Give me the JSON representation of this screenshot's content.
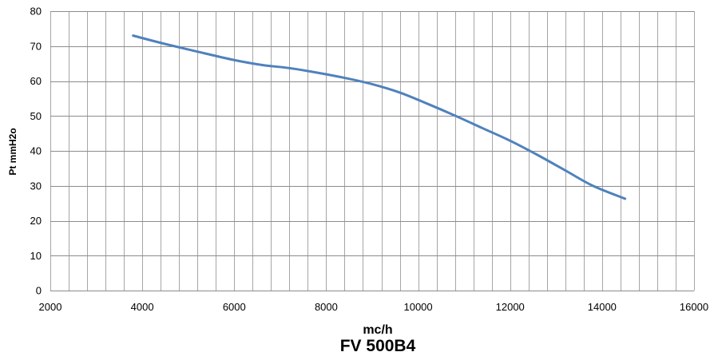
{
  "chart_data": {
    "type": "line",
    "title": "FV 500B4",
    "xlabel": "mc/h",
    "ylabel": "Pt mmH2o",
    "xlim": [
      2000,
      16000
    ],
    "ylim": [
      0,
      80
    ],
    "x_major_ticks": [
      2000,
      4000,
      6000,
      8000,
      10000,
      12000,
      14000,
      16000
    ],
    "x_minor_step": 400,
    "y_ticks": [
      0,
      10,
      20,
      30,
      40,
      50,
      60,
      70,
      80
    ],
    "x_tick_labels": [
      "2000",
      "4000",
      "6000",
      "8000",
      "10000",
      "12000",
      "14000",
      "16000"
    ],
    "y_tick_labels": [
      "0",
      "10",
      "20",
      "30",
      "40",
      "50",
      "60",
      "70",
      "80"
    ],
    "grid": true,
    "series": [
      {
        "color": "#4f81bd",
        "x": [
          3800,
          4500,
          5400,
          6000,
          6600,
          7200,
          7800,
          8400,
          9000,
          9600,
          10200,
          10800,
          11400,
          12000,
          12600,
          13200,
          13800,
          14500
        ],
        "y": [
          73.0,
          70.6,
          67.8,
          66.0,
          64.6,
          63.7,
          62.4,
          60.9,
          59.1,
          56.7,
          53.5,
          50.1,
          46.5,
          42.9,
          38.8,
          34.4,
          30.0,
          26.3
        ]
      }
    ]
  }
}
